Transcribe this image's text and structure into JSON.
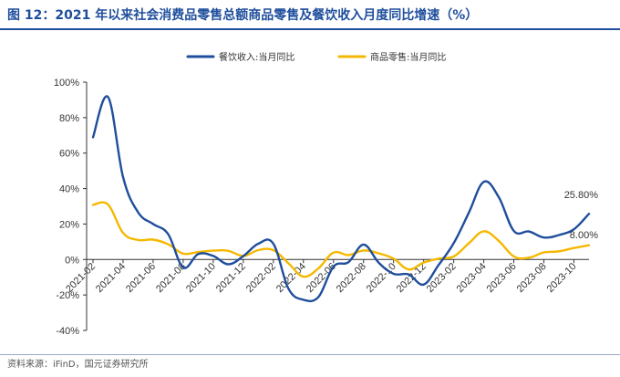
{
  "header": {
    "title": "图 12：2021 年以来社会消费品零售总额商品零售及餐饮收入月度同比增速（%）"
  },
  "footer": {
    "source": "资料来源：iFinD，国元证券研究所"
  },
  "chart_data": {
    "type": "line",
    "title": "",
    "xlabel": "",
    "ylabel": "",
    "ylim": [
      -40,
      100
    ],
    "y_ticks": [
      "100%",
      "80%",
      "60%",
      "40%",
      "20%",
      "0%",
      "-20%",
      "-40%"
    ],
    "y_tick_values": [
      100,
      80,
      60,
      40,
      20,
      0,
      -20,
      -40
    ],
    "grid": false,
    "legend_position": "top",
    "x": [
      "2021-02",
      "2021-03",
      "2021-04",
      "2021-05",
      "2021-06",
      "2021-07",
      "2021-08",
      "2021-09",
      "2021-10",
      "2021-11",
      "2021-12",
      "2022-01",
      "2022-02",
      "2022-03",
      "2022-04",
      "2022-05",
      "2022-06",
      "2022-07",
      "2022-08",
      "2022-09",
      "2022-10",
      "2022-11",
      "2022-12",
      "2023-01",
      "2023-02",
      "2023-03",
      "2023-04",
      "2023-05",
      "2023-06",
      "2023-07",
      "2023-08",
      "2023-09",
      "2023-10",
      "2023-11"
    ],
    "x_tick_labels": [
      "2021-02",
      "2021-04",
      "2021-06",
      "2021-08",
      "2021-10",
      "2021-12",
      "2022-02",
      "2022-04",
      "2022-06",
      "2022-08",
      "2022-10",
      "2022-12",
      "2023-02",
      "2023-04",
      "2023-06",
      "2023-08",
      "2023-10"
    ],
    "series": [
      {
        "name": "餐饮收入:当月同比",
        "color": "#1f4e9c",
        "values": [
          68.9,
          91.6,
          46.4,
          26.6,
          20.0,
          14.3,
          -4.5,
          3.1,
          2.0,
          -2.7,
          1.9,
          8.9,
          8.9,
          -16.4,
          -22.7,
          -21.1,
          -4.0,
          -1.5,
          8.4,
          -1.7,
          -8.1,
          -8.4,
          -14.1,
          -3.0,
          9.2,
          26.3,
          43.8,
          35.1,
          16.1,
          15.8,
          12.4,
          13.8,
          17.1,
          25.8
        ],
        "end_label": "25.80%"
      },
      {
        "name": "商品零售:当月同比",
        "color": "#f5b800",
        "values": [
          30.8,
          31.0,
          15.0,
          11.0,
          11.2,
          8.6,
          3.3,
          4.2,
          5.0,
          4.9,
          2.0,
          5.3,
          5.3,
          -2.1,
          -9.7,
          -5.0,
          3.9,
          2.5,
          5.1,
          3.5,
          0.5,
          -5.6,
          -1.7,
          0.5,
          1.7,
          9.1,
          15.9,
          10.5,
          1.7,
          1.0,
          4.0,
          4.6,
          6.5,
          8.0
        ],
        "end_label": "8.00%"
      }
    ]
  }
}
